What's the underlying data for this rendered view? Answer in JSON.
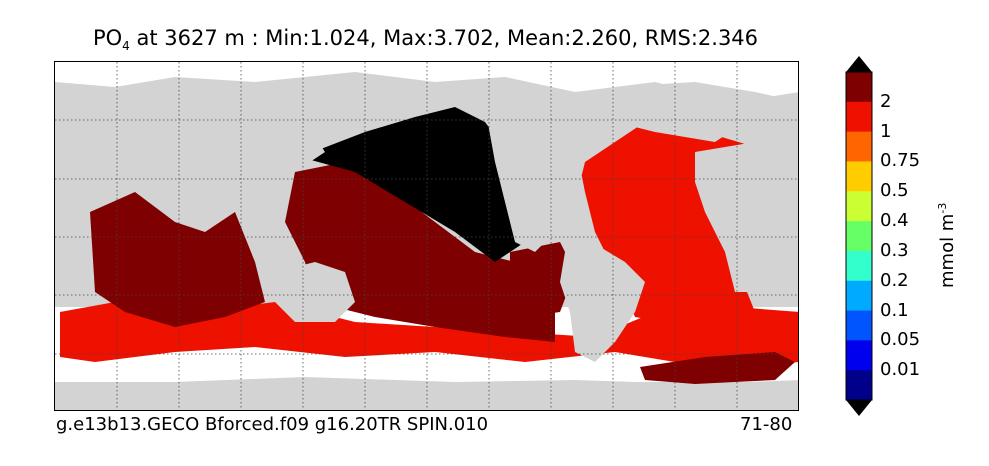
{
  "title": {
    "variable": "PO",
    "subscript": "4",
    "rest": " at 3627 m : Min:1.024, Max:3.702, Mean:2.260, RMS:2.346"
  },
  "footer": {
    "left": "g.e13b13.GECO Bforced.f09 g16.20TR SPIN.010",
    "right": "71-80"
  },
  "colorbar": {
    "unit_base": "mmol m",
    "unit_exp": "-3",
    "ticks": [
      "2",
      "1",
      "0.75",
      "0.5",
      "0.4",
      "0.3",
      "0.2",
      "0.1",
      "0.05",
      "0.01"
    ],
    "colors": [
      "#7f0000",
      "#ee1100",
      "#ff6600",
      "#ffcc00",
      "#ccff33",
      "#66ff66",
      "#33ffcc",
      "#00aaff",
      "#0055ff",
      "#0000ee",
      "#00008b"
    ],
    "over_color": "#000000",
    "under_color": "#000000"
  },
  "map": {
    "land_color": "#d3d3d3",
    "missing_color": "#ffffff",
    "grid": "dotted"
  }
}
